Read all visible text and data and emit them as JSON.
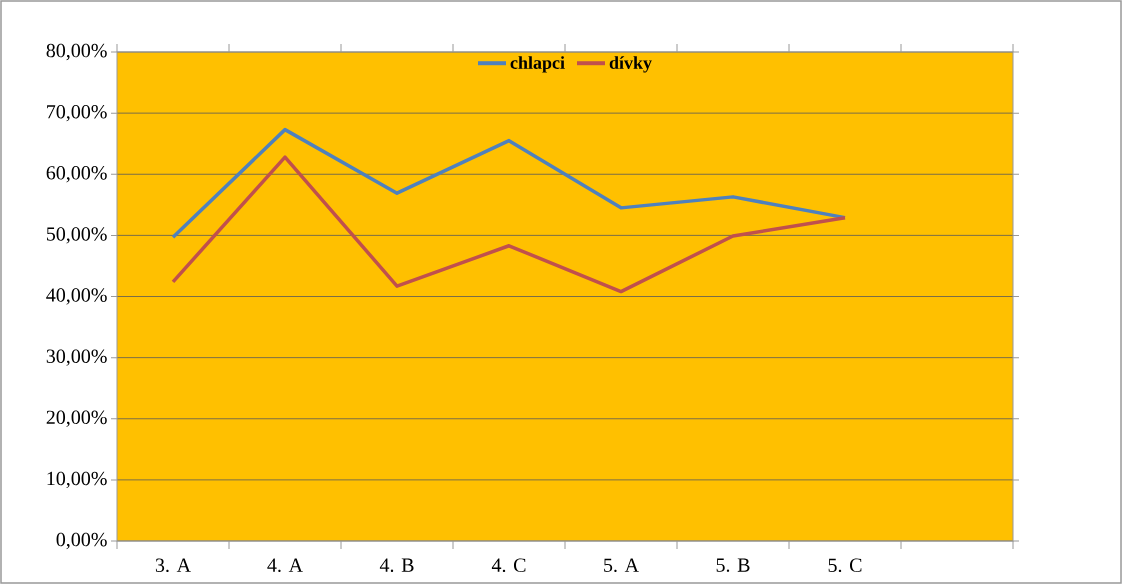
{
  "chart_data": {
    "type": "line",
    "categories": [
      "3. A",
      "4. A",
      "4. B",
      "4. C",
      "5. A",
      "5. B",
      "5. C",
      null
    ],
    "series": [
      {
        "name": "chlapci",
        "color": "#4f81bd",
        "values": [
          49.7,
          67.3,
          56.9,
          65.5,
          54.5,
          56.3,
          52.9,
          null
        ]
      },
      {
        "name": "dívky",
        "color": "#c0504d",
        "values": [
          42.4,
          62.8,
          41.7,
          48.3,
          40.8,
          49.9,
          52.9,
          null
        ]
      }
    ],
    "ylim": [
      0,
      80
    ],
    "yticks": [
      {
        "value": 0,
        "label": "0,00%"
      },
      {
        "value": 10,
        "label": "10,00%"
      },
      {
        "value": 20,
        "label": "20,00%"
      },
      {
        "value": 30,
        "label": "30,00%"
      },
      {
        "value": 40,
        "label": "40,00%"
      },
      {
        "value": 50,
        "label": "50,00%"
      },
      {
        "value": 60,
        "label": "60,00%"
      },
      {
        "value": 70,
        "label": "70,00%"
      },
      {
        "value": 80,
        "label": "80,00%"
      }
    ],
    "grid": "y",
    "legend": "top",
    "marker": "none",
    "line_style": "solid"
  }
}
